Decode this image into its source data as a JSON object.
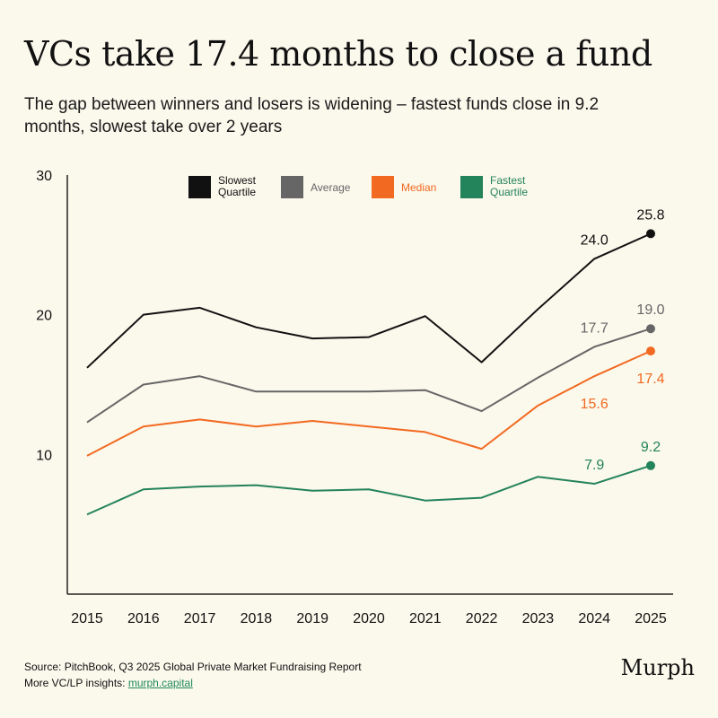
{
  "title": "VCs take 17.4 months to close a fund",
  "subtitle": "The gap between winners and losers is widening – fastest funds close in 9.2 months, slowest take over 2 years",
  "footer": {
    "source": "Source: PitchBook, Q3 2025 Global Private Market Fundraising Report",
    "more_label": "More VC/LP insights: ",
    "more_link": "murph.capital"
  },
  "brand": "Murph",
  "chart_data": {
    "type": "line",
    "x": [
      2015,
      2016,
      2017,
      2018,
      2019,
      2020,
      2021,
      2022,
      2023,
      2024,
      2025
    ],
    "ylim": [
      0,
      30
    ],
    "yticks": [
      10,
      20,
      30
    ],
    "grid": false,
    "legend_position": "top",
    "series": [
      {
        "name_lines": [
          "Slowest",
          "Quartile"
        ],
        "color": "#111111",
        "values": [
          16.2,
          20.0,
          20.5,
          19.1,
          18.3,
          18.4,
          19.9,
          16.6,
          20.4,
          24.0,
          25.8
        ],
        "labels": [
          {
            "index": 9,
            "text": "24.0"
          },
          {
            "index": 10,
            "text": "25.8"
          }
        ]
      },
      {
        "name_lines": [
          "Average"
        ],
        "color": "#666666",
        "values": [
          12.3,
          15.0,
          15.6,
          14.5,
          14.5,
          14.5,
          14.6,
          13.1,
          15.5,
          17.7,
          19.0
        ],
        "labels": [
          {
            "index": 9,
            "text": "17.7"
          },
          {
            "index": 10,
            "text": "19.0"
          }
        ]
      },
      {
        "name_lines": [
          "Median"
        ],
        "color": "#f26a21",
        "values": [
          9.9,
          12.0,
          12.5,
          12.0,
          12.4,
          12.0,
          11.6,
          10.4,
          13.5,
          15.6,
          17.4
        ],
        "labels": [
          {
            "index": 9,
            "text": "15.6"
          },
          {
            "index": 10,
            "text": "17.4"
          }
        ]
      },
      {
        "name_lines": [
          "Fastest",
          "Quartile"
        ],
        "color": "#23835a",
        "values": [
          5.7,
          7.5,
          7.7,
          7.8,
          7.4,
          7.5,
          6.7,
          6.9,
          8.4,
          7.9,
          9.2
        ],
        "labels": [
          {
            "index": 9,
            "text": "7.9"
          },
          {
            "index": 10,
            "text": "9.2"
          }
        ]
      }
    ]
  }
}
